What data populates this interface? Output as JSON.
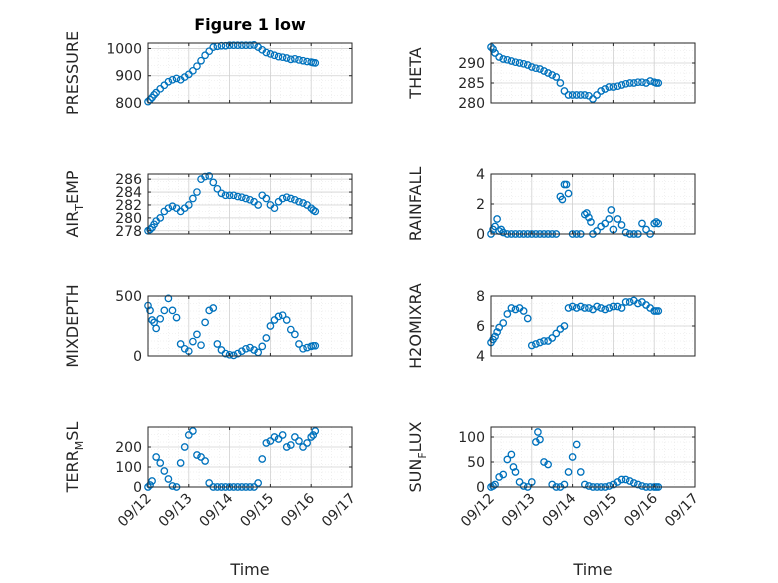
{
  "figure": {
    "title": "Figure 1 low",
    "xlabel": "Time"
  },
  "colors": {
    "marker": "#0072bd",
    "axis": "#262626",
    "grid": "#d0d0d0"
  },
  "chart_data": [
    {
      "type": "scatter",
      "ylabel": "PRESSURE",
      "xlim": [
        0,
        5
      ],
      "ylim": [
        800,
        1020
      ],
      "yticks": [
        800,
        900,
        1000
      ],
      "xticks": [
        "09/12",
        "09/13",
        "09/14",
        "09/15",
        "09/16",
        "09/17"
      ],
      "show_xticklabels": false,
      "title": "Figure 1 low",
      "x": [
        0.0,
        0.05,
        0.1,
        0.15,
        0.2,
        0.3,
        0.4,
        0.5,
        0.6,
        0.7,
        0.8,
        0.9,
        1.0,
        1.1,
        1.2,
        1.3,
        1.4,
        1.5,
        1.6,
        1.7,
        1.8,
        1.9,
        2.0,
        2.1,
        2.2,
        2.3,
        2.4,
        2.5,
        2.6,
        2.7,
        2.8,
        2.9,
        3.0,
        3.1,
        3.2,
        3.3,
        3.4,
        3.5,
        3.6,
        3.7,
        3.8,
        3.9,
        4.0,
        4.05,
        4.1
      ],
      "y": [
        805,
        812,
        820,
        830,
        838,
        852,
        865,
        878,
        885,
        890,
        885,
        895,
        905,
        918,
        935,
        955,
        975,
        990,
        1005,
        1008,
        1010,
        1010,
        1012,
        1012,
        1012,
        1012,
        1012,
        1012,
        1013,
        1005,
        995,
        985,
        980,
        975,
        970,
        968,
        965,
        960,
        962,
        958,
        955,
        952,
        950,
        948,
        947
      ]
    },
    {
      "type": "scatter",
      "ylabel": "THETA",
      "xlim": [
        0,
        5
      ],
      "ylim": [
        280,
        295
      ],
      "yticks": [
        280,
        285,
        290
      ],
      "xticks": [
        "09/12",
        "09/13",
        "09/14",
        "09/15",
        "09/16",
        "09/17"
      ],
      "show_xticklabels": false,
      "x": [
        0.0,
        0.05,
        0.1,
        0.2,
        0.3,
        0.4,
        0.5,
        0.6,
        0.7,
        0.8,
        0.9,
        1.0,
        1.1,
        1.2,
        1.3,
        1.4,
        1.5,
        1.6,
        1.7,
        1.8,
        1.9,
        2.0,
        2.1,
        2.2,
        2.3,
        2.4,
        2.5,
        2.6,
        2.7,
        2.8,
        2.9,
        3.0,
        3.1,
        3.2,
        3.3,
        3.4,
        3.5,
        3.6,
        3.7,
        3.8,
        3.9,
        4.0,
        4.05,
        4.1
      ],
      "y": [
        294.0,
        293.5,
        292.5,
        291.5,
        291.0,
        290.8,
        290.5,
        290.2,
        290.0,
        289.8,
        289.5,
        289.0,
        288.7,
        288.5,
        288.0,
        287.5,
        287.0,
        286.5,
        285.0,
        283.0,
        282.0,
        282.0,
        282.0,
        282.0,
        282.0,
        281.8,
        281.0,
        282.0,
        283.0,
        283.5,
        284.0,
        284.0,
        284.2,
        284.5,
        284.8,
        285.0,
        285.0,
        285.2,
        285.2,
        285.0,
        285.5,
        285.2,
        285.0,
        285.0
      ]
    },
    {
      "type": "scatter",
      "ylabel": "AIR_TEMP",
      "ylabel_main": "AIR",
      "ylabel_sub": "T",
      "ylabel_rest": "EMP",
      "xlim": [
        0,
        5
      ],
      "ylim": [
        277.5,
        286.8
      ],
      "yticks": [
        278,
        280,
        282,
        284,
        286
      ],
      "xticks": [
        "09/12",
        "09/13",
        "09/14",
        "09/15",
        "09/16",
        "09/17"
      ],
      "show_xticklabels": false,
      "x": [
        0.0,
        0.05,
        0.1,
        0.15,
        0.2,
        0.3,
        0.4,
        0.5,
        0.6,
        0.7,
        0.8,
        0.9,
        1.0,
        1.1,
        1.2,
        1.3,
        1.4,
        1.5,
        1.6,
        1.7,
        1.8,
        1.9,
        2.0,
        2.1,
        2.2,
        2.3,
        2.4,
        2.5,
        2.6,
        2.7,
        2.8,
        2.9,
        3.0,
        3.1,
        3.2,
        3.3,
        3.4,
        3.5,
        3.6,
        3.7,
        3.8,
        3.9,
        4.0,
        4.05,
        4.1
      ],
      "y": [
        278.0,
        278.2,
        278.5,
        279.0,
        279.5,
        280.0,
        281.0,
        281.5,
        281.8,
        281.5,
        281.0,
        281.5,
        282.0,
        283.0,
        284.0,
        286.0,
        286.4,
        286.5,
        285.5,
        284.5,
        283.8,
        283.5,
        283.5,
        283.5,
        283.3,
        283.2,
        283.0,
        282.8,
        282.5,
        282.0,
        283.5,
        283.0,
        282.0,
        281.5,
        282.5,
        283.0,
        283.2,
        283.0,
        282.8,
        282.5,
        282.3,
        282.0,
        281.5,
        281.2,
        281.0
      ]
    },
    {
      "type": "scatter",
      "ylabel": "RAINFALL",
      "xlim": [
        0,
        5
      ],
      "ylim": [
        0,
        4
      ],
      "yticks": [
        0,
        2,
        4
      ],
      "xticks": [
        "09/12",
        "09/13",
        "09/14",
        "09/15",
        "09/16",
        "09/17"
      ],
      "show_xticklabels": false,
      "x": [
        0.0,
        0.05,
        0.1,
        0.15,
        0.2,
        0.25,
        0.3,
        0.4,
        0.5,
        0.6,
        0.7,
        0.8,
        0.9,
        1.0,
        1.1,
        1.2,
        1.3,
        1.4,
        1.5,
        1.6,
        1.7,
        1.75,
        1.8,
        1.85,
        1.9,
        2.0,
        2.1,
        2.2,
        2.3,
        2.35,
        2.4,
        2.45,
        2.5,
        2.6,
        2.7,
        2.8,
        2.9,
        2.95,
        3.0,
        3.1,
        3.2,
        3.3,
        3.4,
        3.5,
        3.6,
        3.7,
        3.8,
        3.9,
        4.0,
        4.05,
        4.1
      ],
      "y": [
        0,
        0.3,
        0.5,
        1.0,
        0.2,
        0.3,
        0.1,
        0,
        0,
        0,
        0,
        0,
        0,
        0,
        0,
        0,
        0,
        0,
        0,
        0,
        2.5,
        2.3,
        3.3,
        3.3,
        2.7,
        0,
        0,
        0,
        1.3,
        1.4,
        1.1,
        0.8,
        0,
        0.2,
        0.5,
        0.7,
        1.0,
        1.6,
        0.3,
        1.0,
        0.6,
        0.1,
        0,
        0,
        0,
        0.7,
        0.3,
        0,
        0.7,
        0.8,
        0.7
      ]
    },
    {
      "type": "scatter",
      "ylabel": "MIXDEPTH",
      "xlim": [
        0,
        5
      ],
      "ylim": [
        0,
        500
      ],
      "yticks": [
        0,
        500
      ],
      "xticks": [
        "09/12",
        "09/13",
        "09/14",
        "09/15",
        "09/16",
        "09/17"
      ],
      "show_xticklabels": false,
      "x": [
        0.0,
        0.05,
        0.1,
        0.15,
        0.2,
        0.3,
        0.4,
        0.5,
        0.6,
        0.7,
        0.8,
        0.9,
        1.0,
        1.1,
        1.2,
        1.3,
        1.4,
        1.5,
        1.6,
        1.7,
        1.8,
        1.9,
        2.0,
        2.1,
        2.2,
        2.3,
        2.4,
        2.5,
        2.6,
        2.7,
        2.8,
        2.9,
        3.0,
        3.1,
        3.2,
        3.3,
        3.4,
        3.5,
        3.6,
        3.7,
        3.8,
        3.9,
        4.0,
        4.05,
        4.1
      ],
      "y": [
        420,
        380,
        300,
        280,
        230,
        310,
        380,
        480,
        380,
        320,
        100,
        60,
        40,
        120,
        180,
        90,
        280,
        380,
        400,
        100,
        50,
        20,
        10,
        5,
        20,
        40,
        60,
        70,
        50,
        30,
        80,
        150,
        250,
        300,
        330,
        340,
        300,
        220,
        180,
        100,
        60,
        70,
        80,
        85,
        85
      ]
    },
    {
      "type": "scatter",
      "ylabel": "H2OMIXRA",
      "xlim": [
        0,
        5
      ],
      "ylim": [
        4,
        8
      ],
      "yticks": [
        4,
        6,
        8
      ],
      "xticks": [
        "09/12",
        "09/13",
        "09/14",
        "09/15",
        "09/16",
        "09/17"
      ],
      "show_xticklabels": false,
      "x": [
        0.0,
        0.05,
        0.1,
        0.15,
        0.2,
        0.3,
        0.4,
        0.5,
        0.6,
        0.7,
        0.8,
        0.9,
        1.0,
        1.1,
        1.2,
        1.3,
        1.4,
        1.5,
        1.6,
        1.7,
        1.8,
        1.9,
        2.0,
        2.1,
        2.2,
        2.3,
        2.4,
        2.5,
        2.6,
        2.7,
        2.8,
        2.9,
        3.0,
        3.1,
        3.2,
        3.3,
        3.4,
        3.5,
        3.6,
        3.7,
        3.8,
        3.9,
        4.0,
        4.05,
        4.1
      ],
      "y": [
        4.9,
        5.1,
        5.3,
        5.6,
        5.9,
        6.2,
        6.8,
        7.2,
        7.1,
        7.2,
        7.0,
        6.5,
        4.7,
        4.8,
        4.9,
        5.0,
        5.0,
        5.2,
        5.5,
        5.8,
        6.0,
        7.2,
        7.3,
        7.2,
        7.3,
        7.2,
        7.2,
        7.1,
        7.3,
        7.2,
        7.1,
        7.2,
        7.3,
        7.3,
        7.2,
        7.6,
        7.6,
        7.7,
        7.5,
        7.6,
        7.4,
        7.2,
        7.0,
        7.0,
        7.0
      ]
    },
    {
      "type": "scatter",
      "ylabel": "TERR_MSL",
      "ylabel_main": "TERR",
      "ylabel_sub": "M",
      "ylabel_rest": "SL",
      "xlim": [
        0,
        5
      ],
      "ylim": [
        0,
        300
      ],
      "yticks": [
        0,
        100,
        200
      ],
      "xticks": [
        "09/12",
        "09/13",
        "09/14",
        "09/15",
        "09/16",
        "09/17"
      ],
      "show_xticklabels": true,
      "x": [
        0.0,
        0.05,
        0.1,
        0.2,
        0.3,
        0.4,
        0.5,
        0.6,
        0.7,
        0.8,
        0.9,
        1.0,
        1.1,
        1.2,
        1.3,
        1.4,
        1.5,
        1.6,
        1.7,
        1.8,
        1.9,
        2.0,
        2.1,
        2.2,
        2.3,
        2.4,
        2.5,
        2.6,
        2.7,
        2.8,
        2.9,
        3.0,
        3.1,
        3.2,
        3.3,
        3.4,
        3.5,
        3.6,
        3.7,
        3.8,
        3.9,
        4.0,
        4.05,
        4.1
      ],
      "y": [
        0,
        10,
        30,
        150,
        120,
        80,
        40,
        5,
        0,
        120,
        200,
        260,
        280,
        160,
        150,
        130,
        20,
        0,
        0,
        0,
        0,
        0,
        0,
        0,
        0,
        0,
        0,
        0,
        20,
        140,
        220,
        230,
        250,
        240,
        260,
        200,
        210,
        250,
        230,
        200,
        220,
        250,
        260,
        280
      ]
    },
    {
      "type": "scatter",
      "ylabel": "SUN_FLUX",
      "ylabel_main": "SUN",
      "ylabel_sub": "F",
      "ylabel_rest": "LUX",
      "xlim": [
        0,
        5
      ],
      "ylim": [
        0,
        120
      ],
      "yticks": [
        0,
        50,
        100
      ],
      "xticks": [
        "09/12",
        "09/13",
        "09/14",
        "09/15",
        "09/16",
        "09/17"
      ],
      "show_xticklabels": true,
      "x": [
        0.0,
        0.05,
        0.1,
        0.2,
        0.3,
        0.4,
        0.5,
        0.55,
        0.6,
        0.7,
        0.8,
        0.9,
        1.0,
        1.1,
        1.15,
        1.2,
        1.3,
        1.4,
        1.5,
        1.6,
        1.7,
        1.8,
        1.9,
        2.0,
        2.1,
        2.2,
        2.3,
        2.4,
        2.5,
        2.6,
        2.7,
        2.8,
        2.9,
        3.0,
        3.1,
        3.2,
        3.3,
        3.4,
        3.5,
        3.6,
        3.7,
        3.8,
        3.9,
        4.0,
        4.05,
        4.1
      ],
      "y": [
        0,
        2,
        5,
        20,
        25,
        55,
        65,
        40,
        30,
        10,
        2,
        0,
        10,
        90,
        110,
        95,
        50,
        45,
        5,
        0,
        0,
        5,
        30,
        60,
        85,
        30,
        5,
        2,
        0,
        0,
        0,
        0,
        2,
        5,
        10,
        15,
        15,
        12,
        8,
        5,
        2,
        0,
        0,
        0,
        0,
        0
      ]
    }
  ]
}
